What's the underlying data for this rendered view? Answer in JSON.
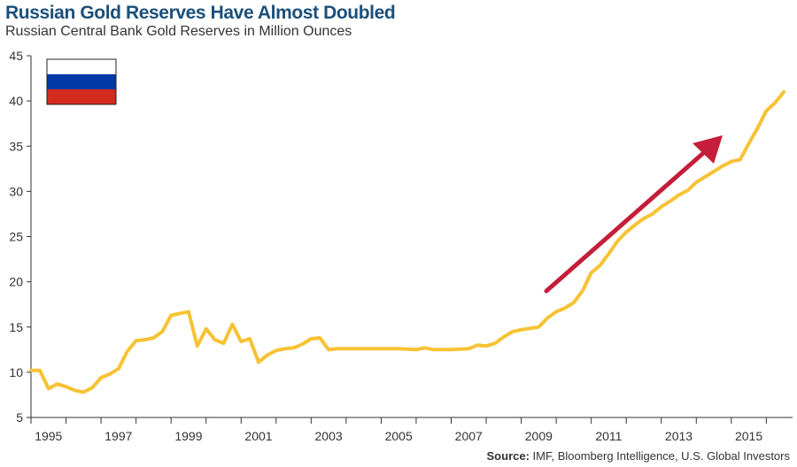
{
  "chart_data": {
    "type": "line",
    "title": "Russian Gold Reserves Have Almost Doubled",
    "subtitle": "Russian Central Bank Gold Reserves in Million Ounces",
    "xlabel": "",
    "ylabel": "",
    "xlim": [
      1994,
      2015.75
    ],
    "ylim": [
      5,
      45
    ],
    "y_ticks": [
      5,
      10,
      15,
      20,
      25,
      30,
      35,
      40,
      45
    ],
    "x_ticks": [
      "1995",
      "1997",
      "1999",
      "2001",
      "2003",
      "2005",
      "2007",
      "2009",
      "2011",
      "2013",
      "2015"
    ],
    "grid": false,
    "series": [
      {
        "color": "#f7c234",
        "x": [
          1994.0,
          1994.25,
          1994.5,
          1994.75,
          1995.0,
          1995.25,
          1995.5,
          1995.75,
          1996.0,
          1996.25,
          1996.5,
          1996.75,
          1997.0,
          1997.25,
          1997.5,
          1997.75,
          1998.0,
          1998.25,
          1998.5,
          1998.75,
          1999.0,
          1999.25,
          1999.5,
          1999.75,
          2000.0,
          2000.25,
          2000.5,
          2000.75,
          2001.0,
          2001.25,
          2001.5,
          2001.75,
          2002.0,
          2002.25,
          2002.5,
          2002.75,
          2003.0,
          2003.5,
          2004.0,
          2004.5,
          2005.0,
          2005.25,
          2005.5,
          2005.75,
          2006.0,
          2006.5,
          2006.75,
          2007.0,
          2007.25,
          2007.5,
          2007.75,
          2008.0,
          2008.5,
          2008.75,
          2009.0,
          2009.25,
          2009.5,
          2009.75,
          2010.0,
          2010.25,
          2010.5,
          2010.75,
          2011.0,
          2011.25,
          2011.5,
          2011.75,
          2012.0,
          2012.25,
          2012.5,
          2012.75,
          2013.0,
          2013.25,
          2013.5,
          2013.75,
          2014.0,
          2014.25,
          2014.5,
          2014.75,
          2015.0,
          2015.25,
          2015.5
        ],
        "y": [
          10.2,
          10.2,
          8.2,
          8.7,
          8.4,
          8.0,
          7.8,
          8.3,
          9.4,
          9.8,
          10.4,
          12.3,
          13.5,
          13.6,
          13.8,
          14.5,
          16.3,
          16.5,
          16.7,
          12.9,
          14.8,
          13.6,
          13.2,
          15.3,
          13.4,
          13.7,
          11.1,
          11.9,
          12.4,
          12.6,
          12.7,
          13.1,
          13.7,
          13.8,
          12.5,
          12.6,
          12.6,
          12.6,
          12.6,
          12.6,
          12.5,
          12.7,
          12.5,
          12.5,
          12.5,
          12.6,
          13.0,
          12.9,
          13.2,
          13.9,
          14.5,
          14.7,
          15.0,
          16.0,
          16.7,
          17.1,
          17.7,
          19.0,
          21.0,
          21.8,
          23.1,
          24.5,
          25.5,
          26.3,
          27.0,
          27.5,
          28.3,
          28.9,
          29.6,
          30.1,
          31.0,
          31.6,
          32.2,
          32.8,
          33.3,
          33.5,
          35.3,
          37.0,
          38.9,
          39.8,
          41.0
        ]
      }
    ],
    "annotation_color": "#c41e3a",
    "flag_colors": [
      "#ffffff",
      "#0039a6",
      "#d52b1e"
    ]
  },
  "footer": {
    "source_label": "Source:",
    "source_text": " IMF, Bloomberg Intelligence, U.S. Global Investors"
  }
}
